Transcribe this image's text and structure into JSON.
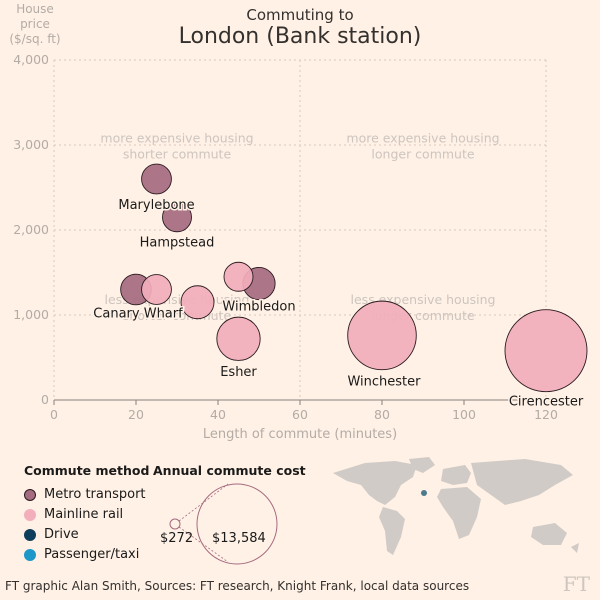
{
  "title": {
    "line1": "Commuting to",
    "line2": "London (Bank station)"
  },
  "chart_data": {
    "type": "scatter",
    "ylabel": "House price ($/sq. ft)",
    "xlabel": "Length of commute (minutes)",
    "xlim": [
      0,
      120
    ],
    "ylim": [
      0,
      4000
    ],
    "xticks": [
      0,
      20,
      40,
      60,
      80,
      100,
      120
    ],
    "yticks": [
      0,
      1000,
      2000,
      3000,
      4000
    ],
    "ytick_labels": [
      "0",
      "1,000",
      "2,000",
      "3,000",
      "4,000"
    ],
    "grid": "dotted",
    "quadrant_labels": [
      {
        "line1": "more expensive housing",
        "line2": "shorter commute",
        "x": 30,
        "y": 2950
      },
      {
        "line1": "more expensive housing",
        "line2": "longer commute",
        "x": 90,
        "y": 2950
      },
      {
        "line1": "less expensive housing",
        "line2": "shorter commute",
        "x": 30,
        "y": 1050
      },
      {
        "line1": "less expensive housing",
        "line2": "longer commute",
        "x": 90,
        "y": 1050
      }
    ],
    "points": [
      {
        "name": "Marylebone",
        "x": 25,
        "y": 2600,
        "cost": 1800,
        "method": "metro",
        "labeled": true
      },
      {
        "name": "Hampstead",
        "x": 30,
        "y": 2150,
        "cost": 1700,
        "method": "metro",
        "labeled": true
      },
      {
        "name": "Canary Wharf",
        "x": 20,
        "y": 1300,
        "cost": 1900,
        "method": "metro",
        "labeled": true
      },
      {
        "name": "",
        "x": 25,
        "y": 1300,
        "cost": 1800,
        "method": "rail",
        "labeled": false
      },
      {
        "name": "",
        "x": 35,
        "y": 1150,
        "cost": 2200,
        "method": "rail",
        "labeled": false
      },
      {
        "name": "",
        "x": 45,
        "y": 1450,
        "cost": 1700,
        "method": "rail",
        "labeled": false
      },
      {
        "name": "Wimbledon",
        "x": 50,
        "y": 1370,
        "cost": 2100,
        "method": "metro",
        "labeled": true
      },
      {
        "name": "Esher",
        "x": 45,
        "y": 720,
        "cost": 3800,
        "method": "rail",
        "labeled": true
      },
      {
        "name": "Winchester",
        "x": 80,
        "y": 760,
        "cost": 9500,
        "method": "rail",
        "labeled": true
      },
      {
        "name": "Cirencester",
        "x": 120,
        "y": 580,
        "cost": 13584,
        "method": "rail",
        "labeled": true
      }
    ]
  },
  "legend": {
    "method_title": "Commute method",
    "methods": [
      {
        "key": "metro",
        "label": "Metro transport",
        "color": "#a56b80"
      },
      {
        "key": "rail",
        "label": "Mainline rail",
        "color": "#f2aebb"
      },
      {
        "key": "drive",
        "label": "Drive",
        "color": "#0f3e5c"
      },
      {
        "key": "taxi",
        "label": "Passenger/taxi",
        "color": "#1c97c8"
      }
    ],
    "cost_title": "Annual commute cost",
    "cost_small": "$272",
    "cost_large": "$13,584"
  },
  "footer": "FT graphic Alan Smith, Sources: FT research, Knight Frank, local data sources",
  "logo": "FT",
  "colors": {
    "background": "#fff1e5",
    "grid": "#dbc9bd",
    "axis_text": "#b3aca6",
    "bubble_stroke": "#2a1a20"
  }
}
